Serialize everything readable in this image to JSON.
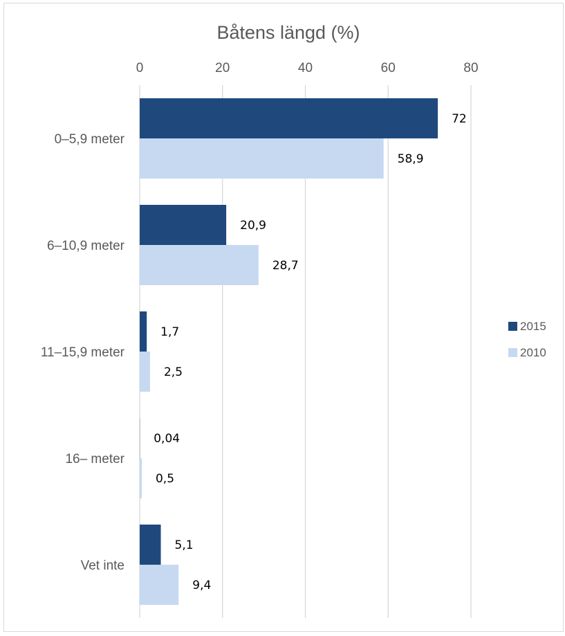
{
  "chart_data": {
    "type": "bar",
    "orientation": "horizontal",
    "title": "Båtens längd (%)",
    "categories": [
      "0–5,9 meter",
      "6–10,9 meter",
      "11–15,9 meter",
      "16– meter",
      "Vet inte"
    ],
    "series": [
      {
        "name": "2015",
        "color": "#1f497d",
        "values": [
          72,
          20.9,
          1.7,
          0.04,
          5.1
        ],
        "labels": [
          "72",
          "20,9",
          "1,7",
          "0,04",
          "5,1"
        ]
      },
      {
        "name": "2010",
        "color": "#c6d9f1",
        "values": [
          58.9,
          28.7,
          2.5,
          0.5,
          9.4
        ],
        "labels": [
          "58,9",
          "28,7",
          "2,5",
          "0,5",
          "9,4"
        ]
      }
    ],
    "xlim": [
      0,
      80
    ],
    "xticks": [
      "0",
      "20",
      "40",
      "60",
      "80"
    ],
    "xtick_values": [
      0,
      20,
      40,
      60,
      80
    ],
    "axis_position": "top",
    "grid": true,
    "legend_position": "right"
  }
}
